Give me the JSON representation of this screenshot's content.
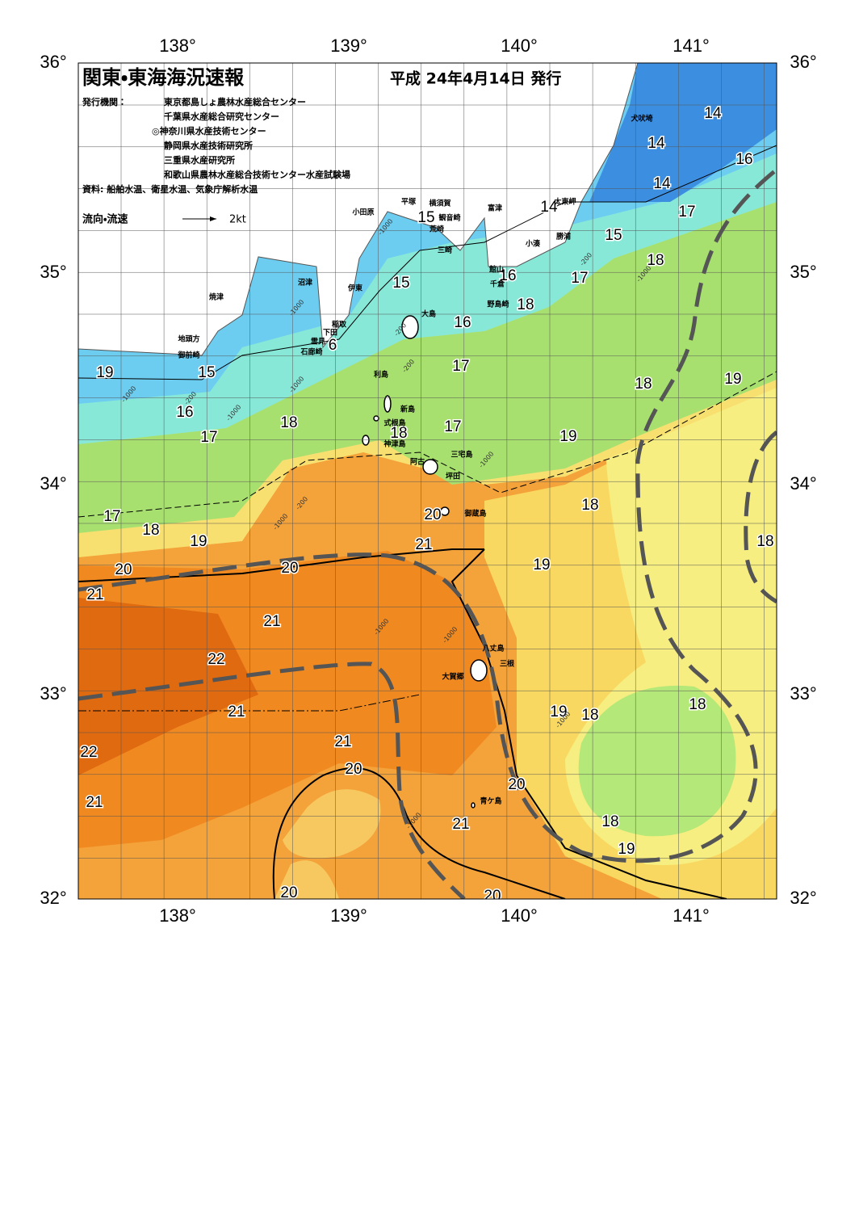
{
  "header": {
    "title": "関東・東海海況速報",
    "date": "平成 24年4月14日 発行",
    "issuer_label": "発行機関：",
    "issuers": [
      "東京都島しょ農林水産総合センター",
      "千葉県水産総合研究センター",
      "◎神奈川県水産技術センター",
      "静岡県水産技術研究所",
      "三重県水産研究所",
      "和歌山県農林水産総合技術センター水産試験場"
    ],
    "source": "資料: 船舶水温、衛星水温、気象庁解析水温",
    "legend_label": "流向・流速",
    "legend_speed": "2kt"
  },
  "axes": {
    "longitudes": [
      "138°",
      "139°",
      "140°",
      "141°"
    ],
    "latitudes": [
      "36°",
      "35°",
      "34°",
      "33°",
      "32°"
    ]
  },
  "places": [
    "犬吠埼",
    "太東岬",
    "勝浦",
    "小湊",
    "富津",
    "横須賀",
    "観音崎",
    "平塚",
    "小田原",
    "荒崎",
    "三崎",
    "館山",
    "千倉",
    "野島崎",
    "沼津",
    "伊東",
    "焼津",
    "大島",
    "稲取",
    "下田",
    "雲見",
    "石廊崎",
    "地頭方",
    "御前崎",
    "利島",
    "新島",
    "式根島",
    "神津島",
    "三宅島",
    "阿古",
    "坪田",
    "御蔵島",
    "八丈島",
    "三根",
    "大賀郷",
    "青ケ島"
  ],
  "temperature_labels": [
    14,
    14,
    14,
    16,
    15,
    14,
    17,
    15,
    18,
    16,
    17,
    15,
    18,
    16,
    6,
    15,
    17,
    18,
    19,
    16,
    17,
    18,
    18,
    17,
    19,
    17,
    18,
    18,
    19,
    20,
    21,
    20,
    20,
    21,
    19,
    18,
    21,
    22,
    21,
    18,
    19,
    18,
    19,
    22,
    21,
    20,
    21,
    20,
    18,
    19,
    21,
    20,
    20
  ],
  "depth_labels": [
    -1000,
    -200,
    -1000,
    -1000,
    -200,
    -200,
    -1000,
    -200,
    -1000,
    -1000,
    -1000,
    -1000,
    -1000,
    -1000,
    -200,
    -1000,
    -1000
  ]
}
